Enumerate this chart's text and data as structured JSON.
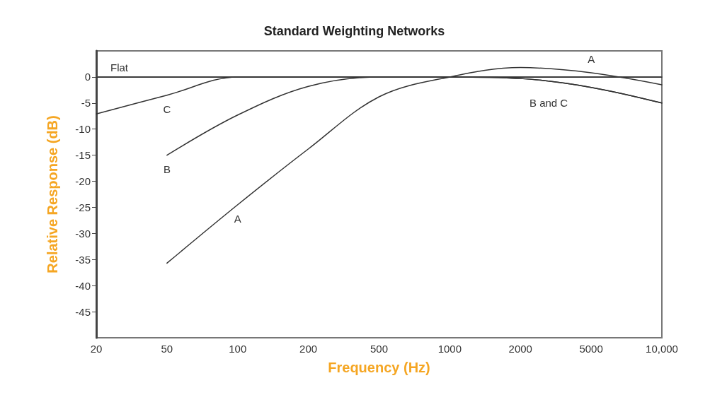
{
  "chart_data": {
    "type": "line",
    "title": "Standard Weighting Networks",
    "xlabel": "Frequency (Hz)",
    "ylabel": "Relative Response (dB)",
    "categories": [
      "20",
      "50",
      "100",
      "200",
      "500",
      "1000",
      "2000",
      "5000",
      "10,000"
    ],
    "series": [
      {
        "name": "A",
        "color": "#333333",
        "values": [
          null,
          -35.7,
          -24.5,
          -13.8,
          -3.8,
          0,
          1.8,
          0.8,
          -1.5
        ]
      },
      {
        "name": "B",
        "color": "#333333",
        "values": [
          null,
          -15,
          -7.3,
          -1.8,
          0,
          0,
          -0.3,
          -2,
          -5
        ]
      },
      {
        "name": "C",
        "color": "#333333",
        "values": [
          -7.1,
          -3.5,
          0,
          0,
          0,
          0,
          -0.3,
          -2,
          -5
        ]
      }
    ],
    "ylim": [
      -50,
      5
    ],
    "yticks": [
      0,
      -5,
      -10,
      -15,
      -20,
      -25,
      -30,
      -35,
      -40,
      -45
    ],
    "ref_lines": [
      {
        "axis": "y",
        "value": 0,
        "label": "Flat",
        "color": "#333333"
      }
    ],
    "annotations": [
      "B and C"
    ],
    "grid": false,
    "legend": false,
    "marker": "none",
    "line_style": "solid"
  }
}
